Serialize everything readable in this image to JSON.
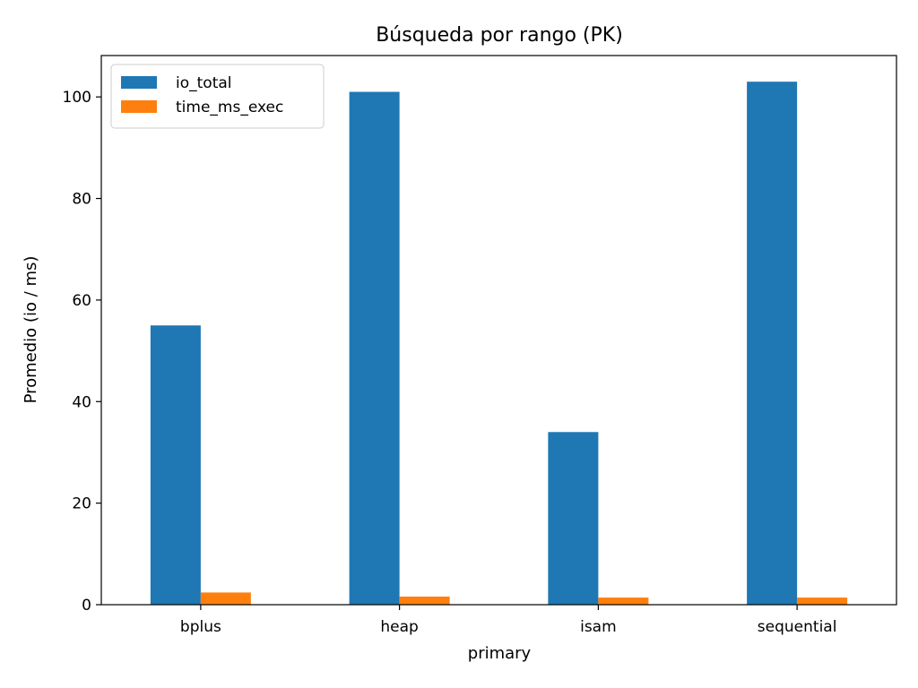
{
  "chart_data": {
    "type": "bar",
    "title": "Búsqueda por rango (PK)",
    "xlabel": "primary",
    "ylabel": "Promedio (io / ms)",
    "categories": [
      "bplus",
      "heap",
      "isam",
      "sequential"
    ],
    "series": [
      {
        "name": "io_total",
        "values": [
          55,
          101,
          34,
          103
        ],
        "color": "#1f77b4"
      },
      {
        "name": "time_ms_exec",
        "values": [
          2.4,
          1.6,
          1.4,
          1.4
        ],
        "color": "#ff7f0e"
      }
    ],
    "ylim": [
      0,
      108.15
    ],
    "yticks": [
      0,
      20,
      40,
      60,
      80,
      100
    ],
    "grid": false,
    "legend_position": "top-left"
  }
}
